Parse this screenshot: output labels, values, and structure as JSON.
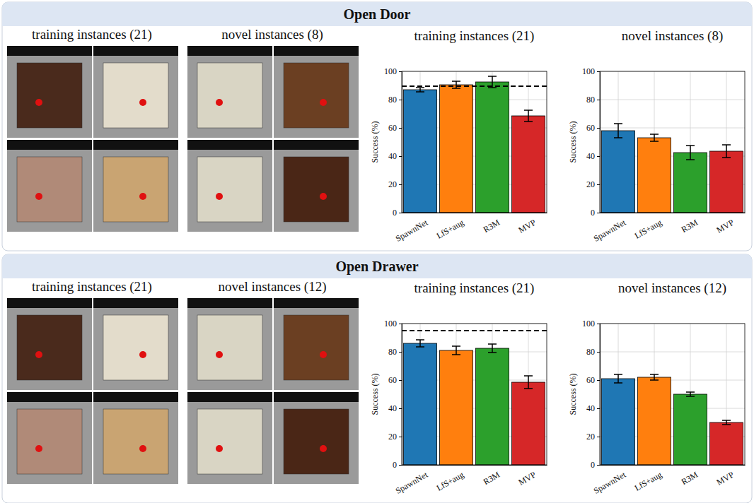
{
  "panels": [
    {
      "title": "Open Door",
      "image_captions": [
        "training instances (21)",
        "novel instances (8)"
      ]
    },
    {
      "title": "Open Drawer",
      "image_captions": [
        "training instances (21)",
        "novel instances (12)"
      ]
    }
  ],
  "chart_data": [
    {
      "type": "bar",
      "title": "training instances (21)",
      "y_label": "Success (%)",
      "categories": [
        "SpawnNet",
        "LfS+aug",
        "R3M",
        "MVP"
      ],
      "values": [
        87,
        90.5,
        92.5,
        68.5
      ],
      "errors": [
        1.5,
        2.5,
        4,
        4
      ],
      "colors": [
        "#1f77b4",
        "#ff7f0e",
        "#2ca02c",
        "#d62728"
      ],
      "reference_line": 89.5,
      "ylim": [
        0,
        100
      ],
      "yticks": [
        0,
        20,
        40,
        60,
        80,
        100
      ],
      "grid": true
    },
    {
      "type": "bar",
      "title": "novel instances (8)",
      "y_label": "Success (%)",
      "categories": [
        "SpawnNet",
        "LfS+aug",
        "R3M",
        "MVP"
      ],
      "values": [
        58,
        53,
        42.5,
        43.5
      ],
      "errors": [
        5,
        2.5,
        5,
        4.5
      ],
      "colors": [
        "#1f77b4",
        "#ff7f0e",
        "#2ca02c",
        "#d62728"
      ],
      "ylim": [
        0,
        100
      ],
      "yticks": [
        0,
        20,
        40,
        60,
        80,
        100
      ],
      "grid": true
    },
    {
      "type": "bar",
      "title": "training instances (21)",
      "y_label": "Success (%)",
      "categories": [
        "SpawnNet",
        "LfS+aug",
        "R3M",
        "MVP"
      ],
      "values": [
        86,
        81,
        82.5,
        58.5
      ],
      "errors": [
        2.5,
        3,
        3,
        4.5
      ],
      "colors": [
        "#1f77b4",
        "#ff7f0e",
        "#2ca02c",
        "#d62728"
      ],
      "reference_line": 95,
      "ylim": [
        0,
        100
      ],
      "yticks": [
        0,
        20,
        40,
        60,
        80,
        100
      ],
      "grid": true
    },
    {
      "type": "bar",
      "title": "novel instances (12)",
      "y_label": "Success (%)",
      "categories": [
        "SpawnNet",
        "LfS+aug",
        "R3M",
        "MVP"
      ],
      "values": [
        61,
        62,
        50,
        30
      ],
      "errors": [
        3,
        2,
        1.5,
        1.5
      ],
      "colors": [
        "#1f77b4",
        "#ff7f0e",
        "#2ca02c",
        "#d62728"
      ],
      "ylim": [
        0,
        100
      ],
      "yticks": [
        0,
        20,
        40,
        60,
        80,
        100
      ],
      "grid": true
    }
  ]
}
